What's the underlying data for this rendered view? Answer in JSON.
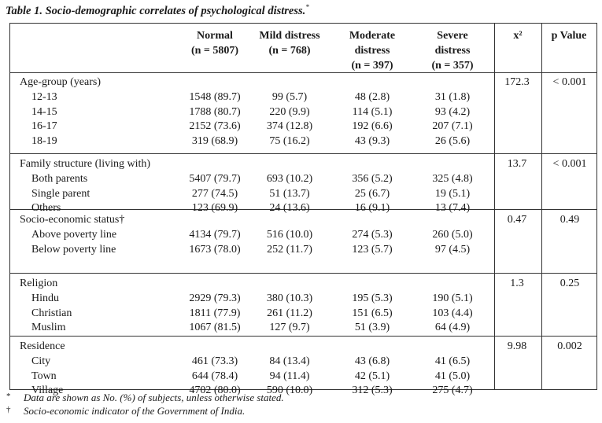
{
  "caption": {
    "text": "Table 1. Socio-demographic correlates of psychological distress.",
    "mark": "*"
  },
  "headers": {
    "normal": [
      "Normal",
      "(n = 5807)"
    ],
    "mild": [
      "Mild distress",
      "(n = 768)"
    ],
    "moderate": [
      "Moderate",
      "distress",
      "(n = 397)"
    ],
    "severe": [
      "Severe",
      "distress",
      "(n = 357)"
    ],
    "chi": "x²",
    "p": "p Value"
  },
  "sections": [
    {
      "title": "Age-group (years)",
      "chi": "172.3",
      "p": "< 0.001",
      "rows": [
        {
          "label": "12-13",
          "normal": "1548 (89.7)",
          "mild": "99 (5.7)",
          "moderate": "48 (2.8)",
          "severe": "31 (1.8)"
        },
        {
          "label": "14-15",
          "normal": "1788 (80.7)",
          "mild": "220 (9.9)",
          "moderate": "114 (5.1)",
          "severe": "93 (4.2)"
        },
        {
          "label": "16-17",
          "normal": "2152 (73.6)",
          "mild": "374 (12.8)",
          "moderate": "192 (6.6)",
          "severe": "207 (7.1)"
        },
        {
          "label": "18-19",
          "normal": "319 (68.9)",
          "mild": "75 (16.2)",
          "moderate": "43 (9.3)",
          "severe": "26 (5.6)"
        }
      ]
    },
    {
      "title": "Family structure (living with)",
      "chi": "13.7",
      "p": "< 0.001",
      "rows": [
        {
          "label": "Both parents",
          "normal": "5407 (79.7)",
          "mild": "693 (10.2)",
          "moderate": "356 (5.2)",
          "severe": "325 (4.8)"
        },
        {
          "label": "Single parent",
          "normal": "277 (74.5)",
          "mild": "51 (13.7)",
          "moderate": "25 (6.7)",
          "severe": "19 (5.1)"
        },
        {
          "label": "Others",
          "normal": "123 (69.9)",
          "mild": "24 (13.6)",
          "moderate": "16 (9.1)",
          "severe": "13 (7.4)"
        }
      ]
    },
    {
      "title": "Socio-economic status†",
      "chi": "0.47",
      "p": "0.49",
      "rows": [
        {
          "label": "Above poverty line",
          "normal": "4134 (79.7)",
          "mild": "516 (10.0)",
          "moderate": "274 (5.3)",
          "severe": "260 (5.0)"
        },
        {
          "label": "Below poverty line",
          "normal": "1673 (78.0)",
          "mild": "252 (11.7)",
          "moderate": "123 (5.7)",
          "severe": "97 (4.5)"
        }
      ]
    },
    {
      "title": "Religion",
      "chi": "1.3",
      "p": "0.25",
      "rows": [
        {
          "label": "Hindu",
          "normal": "2929 (79.3)",
          "mild": "380 (10.3)",
          "moderate": "195 (5.3)",
          "severe": "190 (5.1)"
        },
        {
          "label": "Christian",
          "normal": "1811 (77.9)",
          "mild": "261 (11.2)",
          "moderate": "151 (6.5)",
          "severe": "103 (4.4)"
        },
        {
          "label": "Muslim",
          "normal": "1067 (81.5)",
          "mild": "127 (9.7)",
          "moderate": "51 (3.9)",
          "severe": "64 (4.9)"
        }
      ]
    },
    {
      "title": "Residence",
      "chi": "9.98",
      "p": "0.002",
      "rows": [
        {
          "label": "City",
          "normal": "461 (73.3)",
          "mild": "84 (13.4)",
          "moderate": "43 (6.8)",
          "severe": "41 (6.5)"
        },
        {
          "label": "Town",
          "normal": "644 (78.4)",
          "mild": "94 (11.4)",
          "moderate": "42 (5.1)",
          "severe": "41 (5.0)"
        },
        {
          "label": "Village",
          "normal": "4702 (80.0)",
          "mild": "590 (10.0)",
          "moderate": "312 (5.3)",
          "severe": "275 (4.7)"
        }
      ]
    }
  ],
  "footnotes": [
    {
      "mark": "*",
      "text": "Data are shown as No. (%) of subjects, unless otherwise stated."
    },
    {
      "mark": "†",
      "text": "Socio-economic indicator of the Government of India."
    }
  ]
}
